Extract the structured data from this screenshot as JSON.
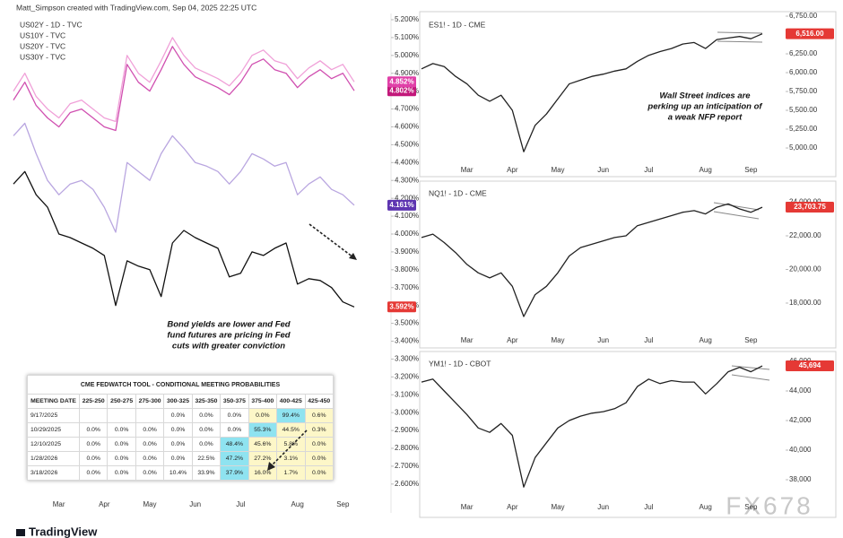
{
  "header": {
    "credit": "Matt_Simpson created with TradingView.com, Sep 04, 2025 22:25 UTC",
    "logo": "TradingView",
    "watermark": "FX678"
  },
  "chart_data": [
    {
      "type": "line",
      "categories": [
        null,
        null,
        null,
        null,
        "Mar",
        null,
        null,
        null,
        "Apr",
        null,
        null,
        null,
        "May",
        null,
        null,
        null,
        "Jun",
        null,
        null,
        null,
        "Jul",
        null,
        null,
        null,
        null,
        "Aug",
        null,
        null,
        null,
        "Sep",
        null
      ],
      "series": [
        {
          "name": "US02Y - 1D - TVC",
          "color": "#111111",
          "tag_color": "#e53935",
          "values": [
            4.28,
            4.35,
            4.22,
            4.15,
            4.0,
            3.98,
            3.95,
            3.92,
            3.88,
            3.6,
            3.85,
            3.82,
            3.8,
            3.65,
            3.95,
            4.02,
            3.98,
            3.95,
            3.92,
            3.76,
            3.78,
            3.9,
            3.88,
            3.92,
            3.95,
            3.72,
            3.75,
            3.74,
            3.7,
            3.62,
            3.592
          ],
          "last_label": {
            "value": 3.592,
            "label": "3.592%"
          }
        },
        {
          "name": "US10Y - TVC",
          "color": "#b9a6e0",
          "tag_color": "#5e35b1",
          "values": [
            4.55,
            4.62,
            4.45,
            4.3,
            4.22,
            4.28,
            4.3,
            4.25,
            4.15,
            4.01,
            4.4,
            4.35,
            4.3,
            4.45,
            4.55,
            4.48,
            4.4,
            4.38,
            4.35,
            4.28,
            4.35,
            4.45,
            4.42,
            4.38,
            4.4,
            4.22,
            4.28,
            4.32,
            4.25,
            4.22,
            4.161
          ],
          "last_label": {
            "value": 4.161,
            "label": "4.161%"
          }
        },
        {
          "name": "US20Y - TVC",
          "color": "#d04fb0",
          "tag_color": "#c2187a",
          "values": [
            4.75,
            4.85,
            4.72,
            4.65,
            4.6,
            4.68,
            4.7,
            4.65,
            4.6,
            4.58,
            4.95,
            4.85,
            4.8,
            4.92,
            5.05,
            4.95,
            4.88,
            4.85,
            4.82,
            4.78,
            4.85,
            4.95,
            4.98,
            4.92,
            4.9,
            4.82,
            4.88,
            4.92,
            4.87,
            4.9,
            4.802
          ],
          "last_label": {
            "value": 4.802,
            "label": "4.802%"
          }
        },
        {
          "name": "US30Y - TVC",
          "color": "#f0a0d8",
          "tag_color": "#e040a8",
          "values": [
            4.8,
            4.9,
            4.77,
            4.7,
            4.65,
            4.73,
            4.75,
            4.7,
            4.65,
            4.63,
            5.0,
            4.9,
            4.85,
            4.97,
            5.1,
            5.0,
            4.93,
            4.9,
            4.87,
            4.83,
            4.9,
            5.0,
            5.03,
            4.97,
            4.95,
            4.87,
            4.93,
            4.97,
            4.92,
            4.95,
            4.852
          ],
          "last_label": {
            "value": 4.852,
            "label": "4.852%"
          }
        }
      ],
      "ylim": [
        2.539,
        5.235
      ],
      "yticks": [
        {
          "value": 5.2,
          "label": "5.200%"
        },
        {
          "value": 5.1,
          "label": "5.100%"
        },
        {
          "value": 5,
          "label": "5.000%"
        },
        {
          "value": 4.9,
          "label": "4.900%"
        },
        {
          "value": 4.8,
          "label": "4.800%"
        },
        {
          "value": 4.7,
          "label": "4.700%"
        },
        {
          "value": 4.6,
          "label": "4.600%"
        },
        {
          "value": 4.5,
          "label": "4.500%"
        },
        {
          "value": 4.4,
          "label": "4.400%"
        },
        {
          "value": 4.3,
          "label": "4.300%"
        },
        {
          "value": 4.2,
          "label": "4.200%"
        },
        {
          "value": 4.1,
          "label": "4.100%"
        },
        {
          "value": 4,
          "label": "4.000%"
        },
        {
          "value": 3.9,
          "label": "3.900%"
        },
        {
          "value": 3.8,
          "label": "3.800%"
        },
        {
          "value": 3.7,
          "label": "3.700%"
        },
        {
          "value": 3.6,
          "label": "3.600%"
        },
        {
          "value": 3.5,
          "label": "3.500%"
        },
        {
          "value": 3.4,
          "label": "3.400%"
        },
        {
          "value": 3.3,
          "label": "3.300%"
        },
        {
          "value": 3.2,
          "label": "3.200%"
        },
        {
          "value": 3.1,
          "label": "3.100%"
        },
        {
          "value": 3,
          "label": "3.000%"
        },
        {
          "value": 2.9,
          "label": "2.900%"
        },
        {
          "value": 2.8,
          "label": "2.800%"
        },
        {
          "value": 2.7,
          "label": "2.700%"
        },
        {
          "value": 2.6,
          "label": "2.600%"
        }
      ],
      "annotation": [
        "Bond yields are lower and Fed",
        "fund futures are pricing in Fed",
        "cuts with greater conviction"
      ]
    },
    {
      "type": "line",
      "title": "ES1! - 1D - CME",
      "categories": [
        null,
        null,
        null,
        null,
        "Mar",
        null,
        null,
        null,
        "Apr",
        null,
        null,
        null,
        "May",
        null,
        null,
        null,
        "Jun",
        null,
        null,
        null,
        "Jul",
        null,
        null,
        null,
        null,
        "Aug",
        null,
        null,
        null,
        "Sep",
        null
      ],
      "series": [
        {
          "color": "#222222",
          "tag_color": "#e53935",
          "values": [
            6050,
            6120,
            6080,
            5950,
            5850,
            5700,
            5620,
            5700,
            5500,
            4950,
            5300,
            5450,
            5650,
            5850,
            5900,
            5950,
            5980,
            6020,
            6050,
            6150,
            6230,
            6280,
            6320,
            6380,
            6400,
            6320,
            6440,
            6460,
            6480,
            6450,
            6516
          ],
          "last_label": {
            "value": 6516,
            "label": "6,516.00"
          }
        }
      ],
      "ylim": [
        4798,
        6786
      ],
      "yticks": [
        {
          "value": 6750,
          "label": "6,750.00"
        },
        {
          "value": 6500,
          "label": "6,500.00"
        },
        {
          "value": 6250,
          "label": "6,250.00"
        },
        {
          "value": 6000,
          "label": "6,000.00"
        },
        {
          "value": 5750,
          "label": "5,750.00"
        },
        {
          "value": 5500,
          "label": "5,500.00"
        },
        {
          "value": 5250,
          "label": "5,250.00"
        },
        {
          "value": 5000,
          "label": "5,000.00"
        }
      ],
      "annotation": [
        "Wall Street indices are",
        "perking up an inticipation of",
        "a weak NFP report"
      ]
    },
    {
      "type": "line",
      "title": "NQ1! - 1D - CME",
      "categories": [
        null,
        null,
        null,
        null,
        "Mar",
        null,
        null,
        null,
        "Apr",
        null,
        null,
        null,
        "May",
        null,
        null,
        null,
        "Jun",
        null,
        null,
        null,
        "Jul",
        null,
        null,
        null,
        null,
        "Aug",
        null,
        null,
        null,
        "Sep",
        null
      ],
      "series": [
        {
          "color": "#222222",
          "tag_color": "#e53935",
          "values": [
            21900,
            22100,
            21600,
            21000,
            20300,
            19800,
            19500,
            19800,
            19000,
            17200,
            18500,
            19000,
            19800,
            20800,
            21300,
            21500,
            21700,
            21900,
            22000,
            22600,
            22800,
            23000,
            23200,
            23400,
            23500,
            23300,
            23700,
            23900,
            23600,
            23400,
            23703.75
          ],
          "last_label": {
            "value": 23703.75,
            "label": "23,703.75"
          }
        }
      ],
      "ylim": [
        16187,
        25093
      ],
      "yticks": [
        {
          "value": 24000,
          "label": "24,000.00"
        },
        {
          "value": 22000,
          "label": "22,000.00"
        },
        {
          "value": 20000,
          "label": "20,000.00"
        },
        {
          "value": 18000,
          "label": "18,000.00"
        }
      ]
    },
    {
      "type": "line",
      "title": "YM1! - 1D - CBOT",
      "categories": [
        null,
        null,
        null,
        null,
        "Mar",
        null,
        null,
        null,
        "Apr",
        null,
        null,
        null,
        "May",
        null,
        null,
        null,
        "Jun",
        null,
        null,
        null,
        "Jul",
        null,
        null,
        null,
        null,
        "Aug",
        null,
        null,
        null,
        "Sep",
        null
      ],
      "series": [
        {
          "color": "#222222",
          "tag_color": "#e53935",
          "values": [
            44600,
            44800,
            44000,
            43200,
            42400,
            41500,
            41200,
            41800,
            41000,
            37500,
            39500,
            40500,
            41500,
            42000,
            42300,
            42500,
            42600,
            42800,
            43200,
            44300,
            44800,
            44500,
            44700,
            44600,
            44600,
            43800,
            44500,
            45300,
            45600,
            45300,
            45694
          ],
          "last_label": {
            "value": 45694,
            "label": "45,694"
          }
        }
      ],
      "ylim": [
        36606,
        46485
      ],
      "yticks": [
        {
          "value": 46000,
          "label": "46,000"
        },
        {
          "value": 44000,
          "label": "44,000"
        },
        {
          "value": 42000,
          "label": "42,000"
        },
        {
          "value": 40000,
          "label": "40,000"
        },
        {
          "value": 38000,
          "label": "38,000"
        }
      ]
    }
  ],
  "fedwatch": {
    "title": "CME FEDWATCH TOOL - CONDITIONAL MEETING PROBABILITIES",
    "columns": [
      "MEETING DATE",
      "225-250",
      "250-275",
      "275-300",
      "300-325",
      "325-350",
      "350-375",
      "375-400",
      "400-425",
      "425-450"
    ],
    "rows": [
      [
        "9/17/2025",
        null,
        null,
        null,
        "0.0%",
        "0.0%",
        "0.0%",
        "0.0%",
        "99.4%",
        "0.6%"
      ],
      [
        "10/29/2025",
        "0.0%",
        "0.0%",
        "0.0%",
        "0.0%",
        "0.0%",
        "0.0%",
        "55.3%",
        "44.5%",
        "0.3%"
      ],
      [
        "12/10/2025",
        "0.0%",
        "0.0%",
        "0.0%",
        "0.0%",
        "0.0%",
        "48.4%",
        "45.6%",
        "5.8%",
        "0.0%"
      ],
      [
        "1/28/2026",
        "0.0%",
        "0.0%",
        "0.0%",
        "0.0%",
        "22.5%",
        "47.2%",
        "27.2%",
        "3.1%",
        "0.0%"
      ],
      [
        "3/18/2026",
        "0.0%",
        "0.0%",
        "0.0%",
        "10.4%",
        "33.9%",
        "37.9%",
        "16.0%",
        "1.7%",
        "0.0%"
      ]
    ]
  }
}
